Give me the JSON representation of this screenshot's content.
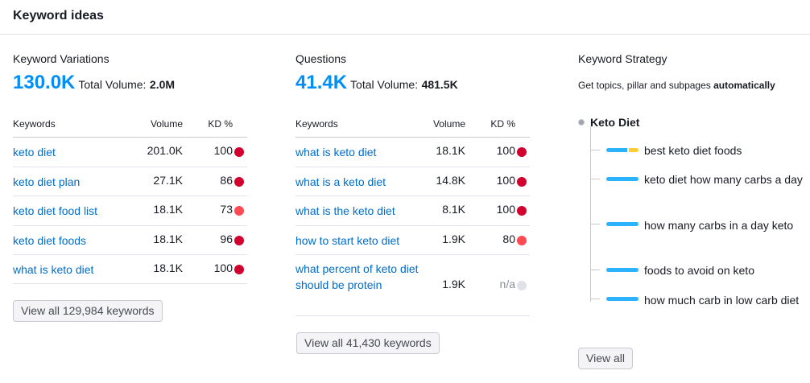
{
  "header": {
    "title": "Keyword ideas"
  },
  "variations": {
    "title": "Keyword Variations",
    "count": "130.0K",
    "total_label": "Total Volume:",
    "total_value": "2.0M",
    "columns": {
      "keywords": "Keywords",
      "volume": "Volume",
      "kd": "KD %"
    },
    "rows": [
      {
        "keyword": "keto diet",
        "volume": "201.0K",
        "kd": "100",
        "kd_color": "#d1002f"
      },
      {
        "keyword": "keto diet plan",
        "volume": "27.1K",
        "kd": "86",
        "kd_color": "#d1002f"
      },
      {
        "keyword": "keto diet food list",
        "volume": "18.1K",
        "kd": "73",
        "kd_color": "#ff4953"
      },
      {
        "keyword": "keto diet foods",
        "volume": "18.1K",
        "kd": "96",
        "kd_color": "#d1002f"
      },
      {
        "keyword": "what is keto diet",
        "volume": "18.1K",
        "kd": "100",
        "kd_color": "#d1002f"
      }
    ],
    "view_all": "View all 129,984 keywords"
  },
  "questions": {
    "title": "Questions",
    "count": "41.4K",
    "total_label": "Total Volume:",
    "total_value": "481.5K",
    "columns": {
      "keywords": "Keywords",
      "volume": "Volume",
      "kd": "KD %"
    },
    "rows": [
      {
        "keyword": "what is keto diet",
        "volume": "18.1K",
        "kd": "100",
        "kd_color": "#d1002f"
      },
      {
        "keyword": "what is a keto diet",
        "volume": "14.8K",
        "kd": "100",
        "kd_color": "#d1002f"
      },
      {
        "keyword": "what is the keto diet",
        "volume": "8.1K",
        "kd": "100",
        "kd_color": "#d1002f"
      },
      {
        "keyword": "how to start keto diet",
        "volume": "1.9K",
        "kd": "80",
        "kd_color": "#ff4953"
      },
      {
        "keyword": "what percent of keto diet should be protein",
        "volume": "1.9K",
        "kd": "n/a",
        "kd_color": "#e0e1e9"
      }
    ],
    "view_all": "View all 41,430 keywords"
  },
  "strategy": {
    "title": "Keyword Strategy",
    "subtitle_prefix": "Get topics, pillar and subpages ",
    "subtitle_bold": "automatically",
    "root": "Keto Diet",
    "items": [
      "best keto diet foods",
      "keto diet how many carbs a day",
      "how many carbs in a day keto",
      "foods to avoid on keto",
      "how much carb in low carb diet"
    ],
    "view_all": "View all"
  }
}
